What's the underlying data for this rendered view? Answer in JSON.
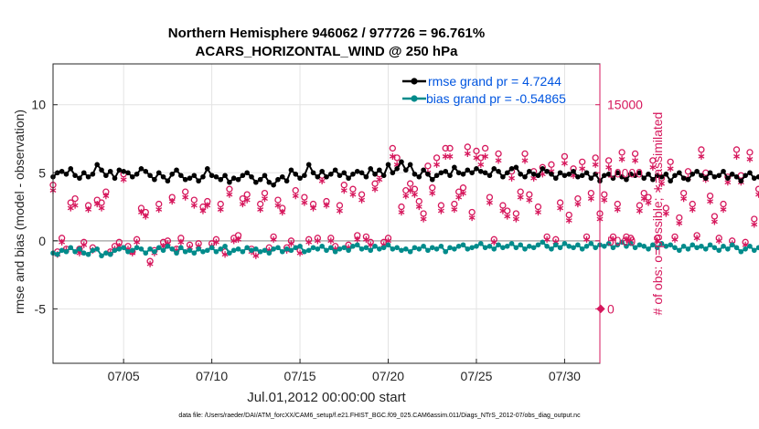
{
  "chart_data": {
    "type": "line",
    "title": [
      "Northern Hemisphere 946062 / 977726 = 96.761%",
      "ACARS_HORIZONTAL_WIND @ 250 hPa"
    ],
    "xlabel": "Jul.01,2012 00:00:00 start",
    "ylabel_left": "rmse and bias (model - observation)",
    "ylabel_right": "# of obs: o=possible; ∗=assimilated",
    "footer": "data file: /Users/raeder/DAI/ATM_forcXX/CAM6_setup/f.e21.FHIST_BGC.f09_025.CAM6assim.011/Diags_NTrS_2012-07/obs_diag_output.nc",
    "x_ticks": [
      {
        "day": 5,
        "label": "07/05"
      },
      {
        "day": 10,
        "label": "07/10"
      },
      {
        "day": 15,
        "label": "07/15"
      },
      {
        "day": 20,
        "label": "07/20"
      },
      {
        "day": 25,
        "label": "07/25"
      },
      {
        "day": 30,
        "label": "07/30"
      }
    ],
    "xlim": [
      1,
      32
    ],
    "ylim_left": [
      -9,
      13
    ],
    "ylim_right": [
      -4000,
      18000
    ],
    "y_ticks_left": [
      {
        "v": 10,
        "label": "10"
      },
      {
        "v": 5,
        "label": "5"
      },
      {
        "v": 0,
        "label": "0"
      },
      {
        "v": -5,
        "label": "-5"
      }
    ],
    "y_ticks_right": [
      {
        "v": 15000,
        "label": "15000"
      },
      {
        "v": 10000,
        "label": "10000"
      },
      {
        "v": 5000,
        "label": "5000"
      },
      {
        "v": 0,
        "label": "0"
      }
    ],
    "grid": true,
    "legend_position": "top-right",
    "colors": {
      "rmse": "#000000",
      "bias": "#008b8b",
      "obs": "#d6175c",
      "legend_text": "#0055e0",
      "zero_line": "#b0b0b0"
    },
    "series": [
      {
        "name": "rmse grand pr = 4.7244",
        "axis": "left",
        "x_start": 1.0,
        "x_step": 0.25,
        "values": [
          4.7,
          5.0,
          5.1,
          4.9,
          5.3,
          4.8,
          4.6,
          5.0,
          4.7,
          4.9,
          5.6,
          5.2,
          4.8,
          5.1,
          4.6,
          5.2,
          5.1,
          5.0,
          4.7,
          4.9,
          5.3,
          5.1,
          4.8,
          4.5,
          5.0,
          4.7,
          4.4,
          4.9,
          5.2,
          4.8,
          4.5,
          4.6,
          4.8,
          4.4,
          4.7,
          5.3,
          4.8,
          4.7,
          4.5,
          4.8,
          4.3,
          4.6,
          4.5,
          4.8,
          5.0,
          4.7,
          4.3,
          4.5,
          4.8,
          4.3,
          4.1,
          4.5,
          4.7,
          4.4,
          5.2,
          4.9,
          4.6,
          4.8,
          5.6,
          5.0,
          4.7,
          5.1,
          4.7,
          4.9,
          5.2,
          4.8,
          5.0,
          4.6,
          4.9,
          5.1,
          5.0,
          4.7,
          5.3,
          4.9,
          5.2,
          4.8,
          5.6,
          5.0,
          5.3,
          5.8,
          5.2,
          5.6,
          4.9,
          4.7,
          5.2,
          4.9,
          4.5,
          4.8,
          5.0,
          5.1,
          4.8,
          5.4,
          5.0,
          4.9,
          5.2,
          5.0,
          5.3,
          5.1,
          5.0,
          4.8,
          5.3,
          5.1,
          4.7,
          5.0,
          5.3,
          5.4,
          4.9,
          4.7,
          5.1,
          4.9,
          4.8,
          5.3,
          5.1,
          4.9,
          4.6,
          5.0,
          4.8,
          4.9,
          5.1,
          4.7,
          4.8,
          5.0,
          4.6,
          4.9,
          4.4,
          4.8,
          4.9,
          4.6,
          5.0,
          4.7,
          4.5,
          4.9,
          4.8,
          5.0,
          4.6,
          4.9,
          4.5,
          4.8,
          4.7,
          4.9,
          4.4,
          4.8,
          5.0,
          4.6,
          4.5,
          4.9,
          5.1,
          4.8,
          4.6,
          5.0,
          4.7,
          4.8,
          5.1,
          4.6,
          4.9,
          4.7,
          4.4,
          4.8,
          5.0,
          4.6,
          4.7,
          5.0,
          4.9,
          4.6,
          4.8,
          4.9,
          4.5,
          4.3,
          4.6,
          4.8,
          4.5,
          4.6,
          4.9,
          4.4,
          4.8,
          5.0,
          5.3,
          4.8,
          4.5,
          4.9,
          4.7,
          4.9,
          5.1,
          4.8,
          5.7,
          5.2,
          5.3
        ],
        "marker": "filled-circle-line"
      },
      {
        "name": "bias grand pr = -0.54865",
        "axis": "left",
        "x_start": 1.0,
        "x_step": 0.25,
        "values": [
          -0.9,
          -1.0,
          -0.7,
          -0.8,
          -0.5,
          -0.8,
          -0.6,
          -0.9,
          -1.0,
          -0.7,
          -0.6,
          -1.1,
          -0.9,
          -1.0,
          -0.7,
          -0.6,
          -0.5,
          -0.8,
          -0.7,
          -0.5,
          -0.6,
          -0.9,
          -0.6,
          -0.8,
          -0.5,
          -0.7,
          -0.4,
          -0.6,
          -0.9,
          -0.5,
          -0.8,
          -0.7,
          -0.9,
          -0.6,
          -0.8,
          -0.7,
          -0.5,
          -0.8,
          -0.6,
          -0.4,
          -0.9,
          -0.7,
          -0.6,
          -0.8,
          -0.5,
          -0.7,
          -0.6,
          -0.8,
          -0.7,
          -0.9,
          -0.6,
          -0.5,
          -0.8,
          -0.6,
          -0.7,
          -0.5,
          -0.4,
          -0.8,
          -0.7,
          -0.5,
          -0.6,
          -0.4,
          -0.7,
          -0.5,
          -0.8,
          -0.6,
          -0.5,
          -0.7,
          -0.4,
          -0.3,
          -0.6,
          -0.5,
          -0.7,
          -0.4,
          -0.6,
          -0.5,
          -0.3,
          -0.6,
          -0.5,
          -0.7,
          -0.6,
          -0.8,
          -0.5,
          -0.6,
          -0.4,
          -0.7,
          -0.5,
          -0.6,
          -0.4,
          -0.8,
          -0.5,
          -0.6,
          -0.4,
          -0.3,
          -0.6,
          -0.5,
          -0.4,
          -0.2,
          -0.5,
          -0.4,
          -0.6,
          -0.3,
          -0.5,
          -0.4,
          -0.2,
          -0.5,
          -0.3,
          -0.6,
          -0.4,
          -0.5,
          -0.3,
          -0.1,
          -0.4,
          -0.6,
          -0.3,
          -0.5,
          -0.2,
          -0.4,
          -0.5,
          -0.3,
          -0.6,
          -0.4,
          -0.2,
          -0.5,
          -0.3,
          -0.4,
          -0.2,
          -0.5,
          -0.3,
          -0.1,
          -0.4,
          -0.2,
          -0.5,
          -0.3,
          -0.4,
          -0.6,
          -0.3,
          -0.5,
          -0.2,
          -0.4,
          -0.3,
          -0.5,
          -0.7,
          -0.4,
          -0.6,
          -0.3,
          -0.5,
          -0.4,
          -0.6,
          -0.3,
          -0.5,
          -0.7,
          -0.4,
          -0.6,
          -0.3,
          -0.5,
          -0.8,
          -0.6,
          -0.4,
          -0.7,
          -0.5,
          -0.3,
          -0.6,
          -0.4,
          -0.7,
          -0.5,
          -0.6,
          -0.4,
          -0.8,
          -0.5,
          -0.3,
          -0.6,
          -0.4,
          -0.7,
          -0.5,
          -0.6,
          -0.3,
          -0.5,
          -0.7,
          -0.4,
          -0.6,
          -0.8,
          -0.5,
          -0.7,
          -0.4,
          -0.3
        ],
        "marker": "filled-circle-line"
      },
      {
        "name": "# obs possible",
        "axis": "right",
        "x_start": 1.0,
        "x_step": 0.25,
        "values": [
          9100,
          4200,
          5200,
          4400,
          7800,
          8100,
          4400,
          4900,
          7600,
          4500,
          8000,
          7800,
          8600,
          4200,
          4600,
          4900,
          9900,
          4600,
          4200,
          5100,
          7400,
          7100,
          3500,
          4300,
          7700,
          4900,
          5000,
          8200,
          4400,
          5200,
          8600,
          4700,
          8000,
          4800,
          7500,
          7900,
          4800,
          5100,
          7700,
          4200,
          8800,
          5200,
          5400,
          8100,
          8400,
          4400,
          4100,
          7700,
          8500,
          4500,
          5300,
          8000,
          7400,
          4500,
          5000,
          8700,
          4300,
          8200,
          5100,
          7700,
          5200,
          9800,
          7900,
          5200,
          4600,
          7600,
          9100,
          4700,
          8800,
          5400,
          8400,
          5300,
          4900,
          9200,
          9900,
          4900,
          5200,
          11800,
          11100,
          7500,
          8700,
          9200,
          8800,
          7900,
          7000,
          10500,
          8900,
          11100,
          7600,
          11800,
          11800,
          7700,
          8600,
          8900,
          11900,
          7100,
          11600,
          11100,
          11800,
          8200,
          5100,
          11400,
          7600,
          7200,
          10100,
          7000,
          8600,
          11400,
          8400,
          10100,
          7500,
          10400,
          5300,
          10600,
          5100,
          7800,
          11200,
          6900,
          10300,
          8100,
          10800,
          5300,
          8500,
          11100,
          7000,
          8400,
          10900,
          5300,
          7700,
          11500,
          5300,
          5200,
          11400,
          7600,
          8500,
          8200,
          10900,
          5200,
          9600,
          7400,
          10800,
          5300,
          6700,
          8500,
          10100,
          7700,
          5400,
          11700,
          10000,
          8300,
          6800,
          5200,
          7700,
          9700,
          5000,
          11700,
          9800,
          4900,
          11500,
          6600,
          8800,
          4900,
          9700,
          8000,
          4800,
          5300,
          7300,
          10000,
          6900,
          8400,
          4800,
          8300,
          4600,
          10800,
          5000,
          7200,
          5200,
          8300,
          5000,
          7200,
          11200,
          5400,
          8700,
          11000,
          4400
        ],
        "marker": "open-circle"
      },
      {
        "name": "# obs assimilated",
        "axis": "right",
        "x_start": 1.0,
        "x_step": 0.25,
        "values": [
          8700,
          4000,
          4900,
          4300,
          7400,
          7600,
          4100,
          4700,
          7300,
          4300,
          7700,
          7400,
          8300,
          4100,
          4400,
          4600,
          9500,
          4400,
          4100,
          4900,
          7100,
          6800,
          3300,
          4100,
          7300,
          4600,
          4800,
          7900,
          4300,
          4900,
          8200,
          4500,
          7600,
          4600,
          7200,
          7600,
          4600,
          4900,
          7300,
          4000,
          8400,
          5000,
          5100,
          7700,
          8000,
          4200,
          3900,
          7300,
          8100,
          4300,
          5100,
          7600,
          7100,
          4300,
          4800,
          8300,
          4100,
          7800,
          4900,
          7400,
          5000,
          9400,
          7600,
          5000,
          4400,
          7200,
          8700,
          4500,
          8400,
          5100,
          8000,
          5100,
          4700,
          8800,
          9500,
          4700,
          5000,
          11200,
          10600,
          7100,
          8300,
          8700,
          8400,
          7500,
          6600,
          10000,
          8500,
          10600,
          7200,
          11200,
          11200,
          7300,
          8200,
          8500,
          11400,
          6700,
          11100,
          10600,
          11200,
          7800,
          4900,
          10900,
          7200,
          6800,
          9600,
          6600,
          8200,
          10900,
          8000,
          9600,
          7100,
          9900,
          5100,
          10100,
          4900,
          7400,
          10700,
          6500,
          9800,
          7700,
          10300,
          5100,
          8100,
          10600,
          6600,
          8000,
          10400,
          5100,
          7300,
          11000,
          5100,
          5000,
          10900,
          7200,
          8100,
          7800,
          10400,
          5000,
          9200,
          7000,
          10300,
          5100,
          6300,
          8100,
          9600,
          7300,
          5200,
          11200,
          9500,
          7900,
          6400,
          5000,
          7300,
          9300,
          4800,
          11200,
          9300,
          4700,
          11000,
          6200,
          8400,
          4700,
          9300,
          7600,
          4600,
          5100,
          6900,
          9500,
          6500,
          8000,
          4600,
          7900,
          4400,
          10300,
          4800,
          6800,
          5000,
          7900,
          4800,
          6800,
          10700,
          5200,
          8300,
          10500,
          4200
        ],
        "marker": "asterisk"
      }
    ],
    "extra_points": [
      {
        "series": "# obs possible",
        "x": 32.05,
        "y": 0
      }
    ]
  }
}
